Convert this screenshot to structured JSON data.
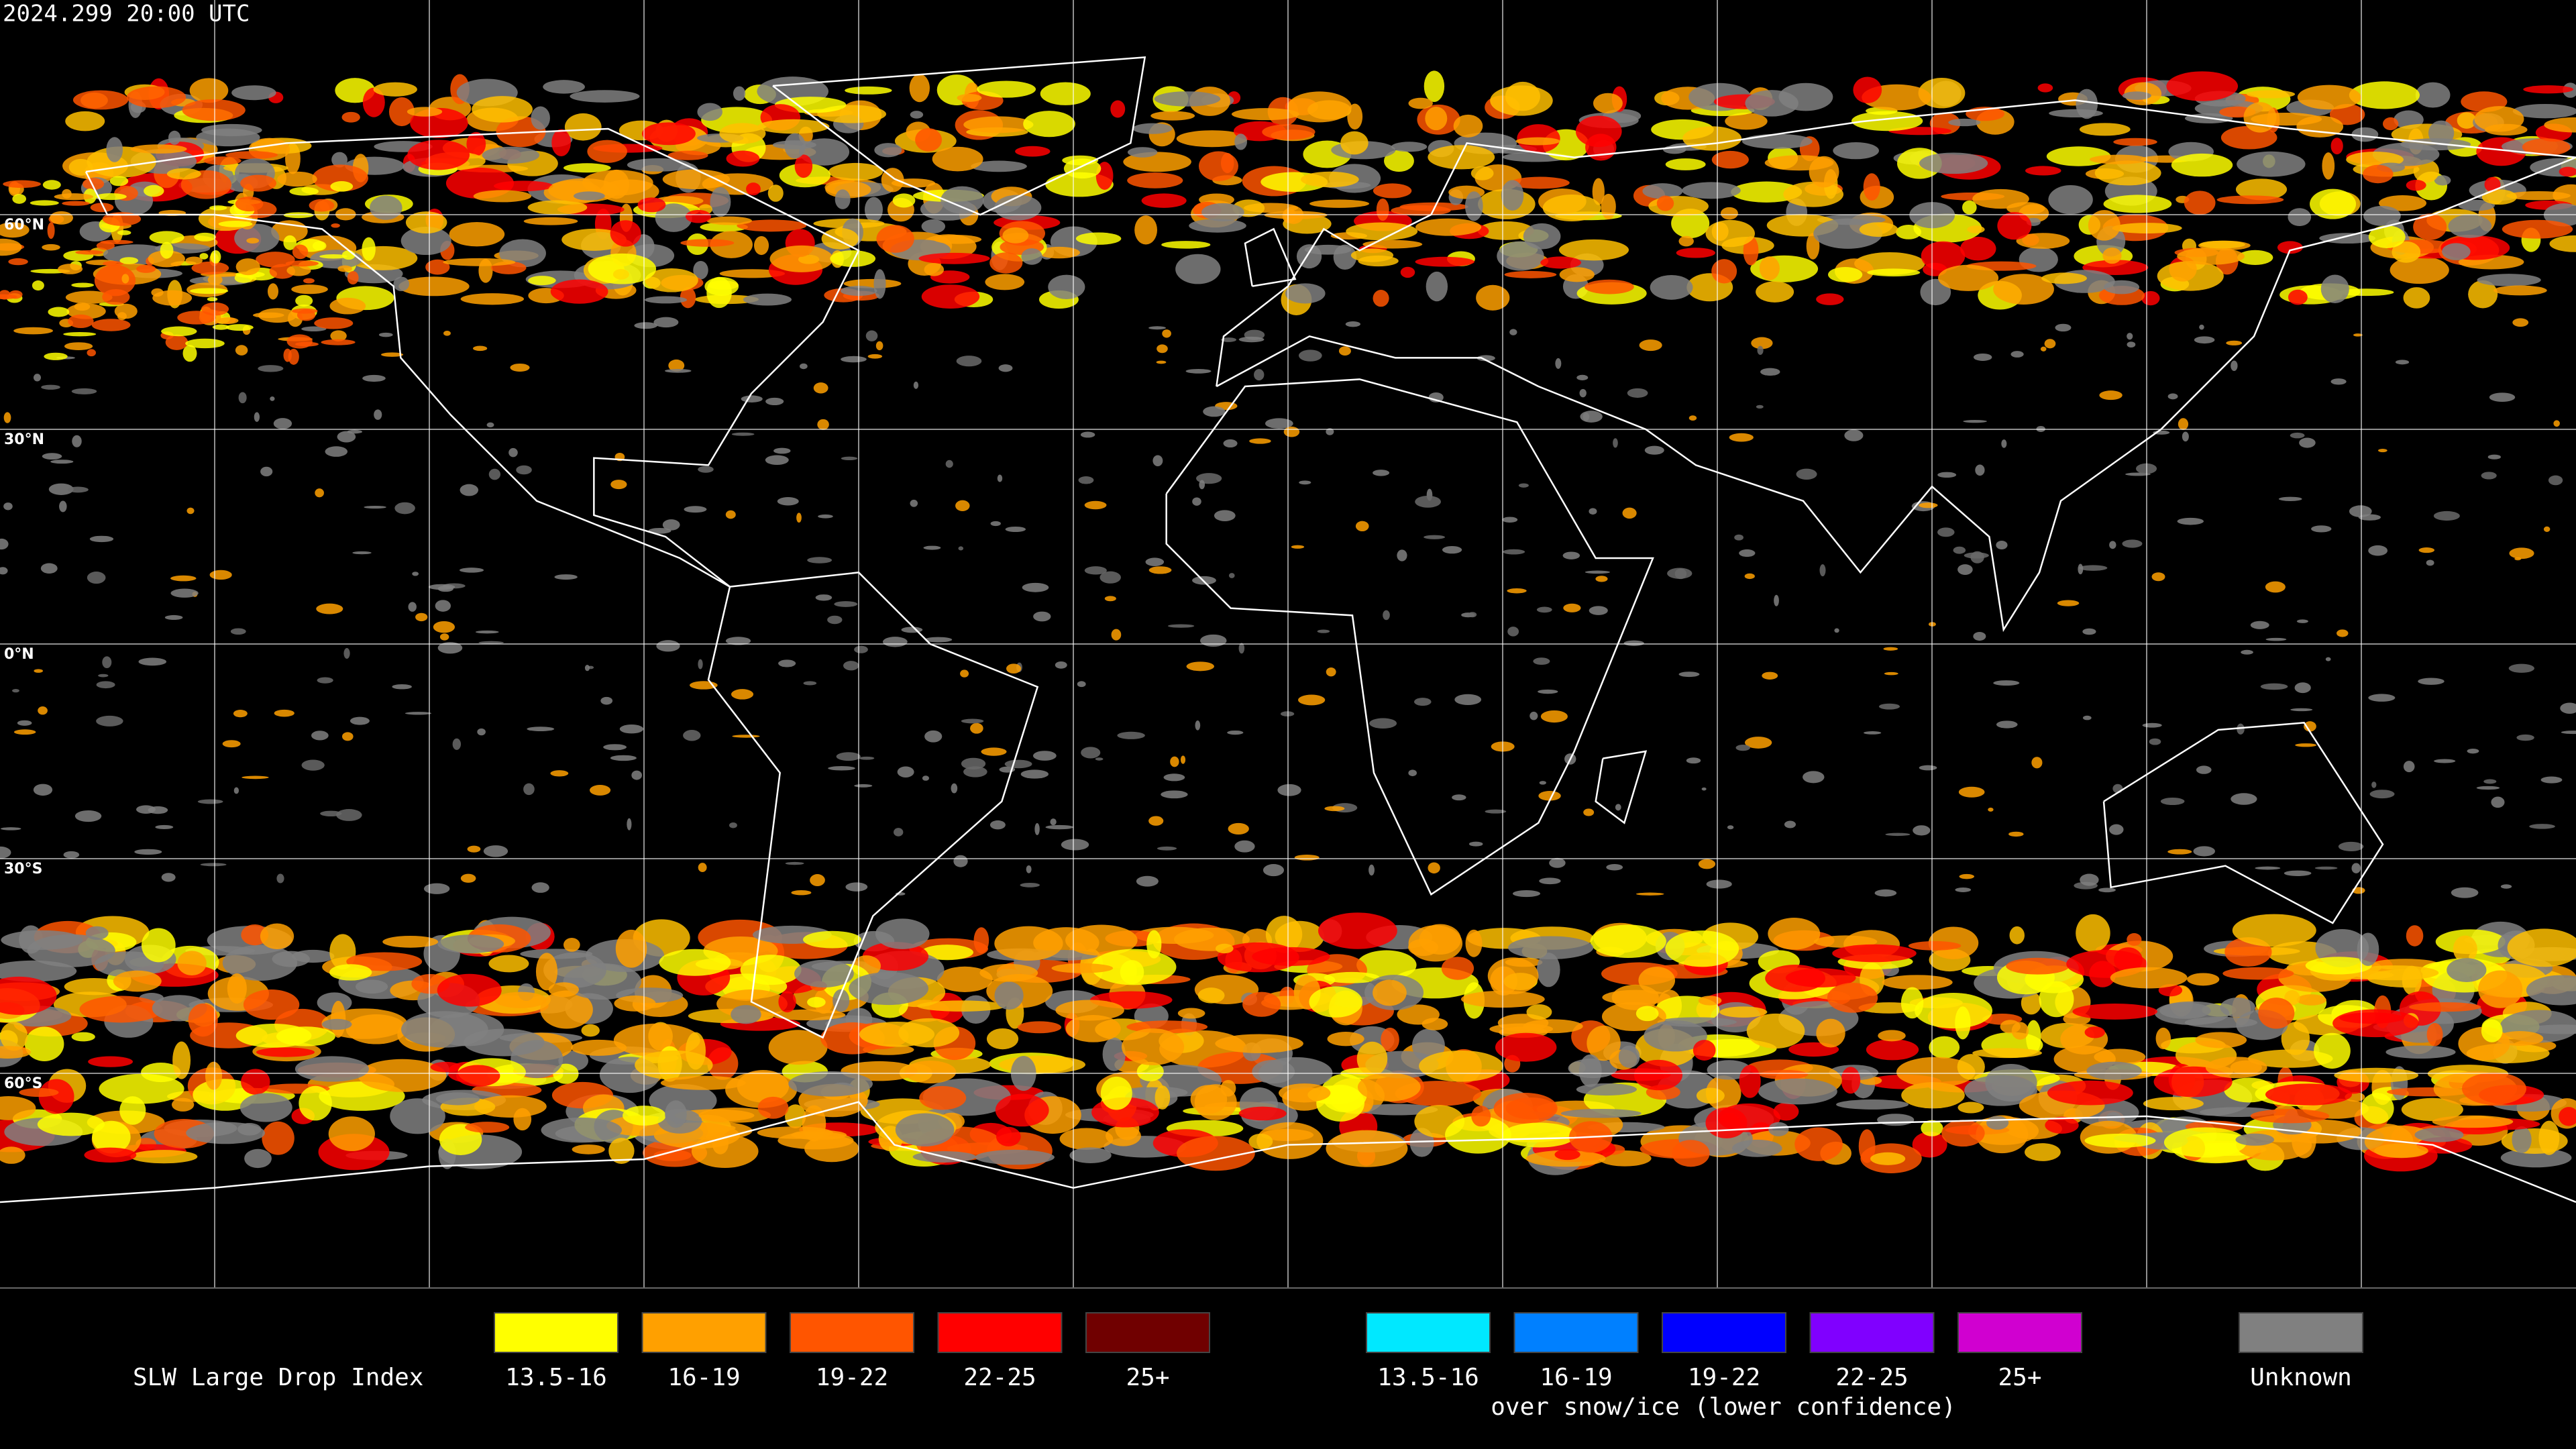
{
  "header": {
    "timestamp": "2024.299 20:00 UTC"
  },
  "map": {
    "latitude_labels": [
      "60°N",
      "30°N",
      "0°N",
      "30°S",
      "60°S"
    ]
  },
  "legend": {
    "title": "SLW Large Drop Index",
    "groups": [
      {
        "items": [
          {
            "label": "13.5-16",
            "color": "#ffff00"
          },
          {
            "label": "16-19",
            "color": "#ffa000"
          },
          {
            "label": "19-22",
            "color": "#ff5500"
          },
          {
            "label": "22-25",
            "color": "#ff0000"
          },
          {
            "label": "25+",
            "color": "#700000"
          }
        ]
      },
      {
        "items": [
          {
            "label": "13.5-16",
            "color": "#00e8ff"
          },
          {
            "label": "16-19",
            "color": "#0080ff"
          },
          {
            "label": "19-22",
            "color": "#0000ff"
          },
          {
            "label": "22-25",
            "color": "#8000ff"
          },
          {
            "label": "25+",
            "color": "#d000d0"
          }
        ],
        "note": "over snow/ice (lower confidence)"
      }
    ],
    "unknown": {
      "label": "Unknown",
      "color": "#808080"
    }
  }
}
